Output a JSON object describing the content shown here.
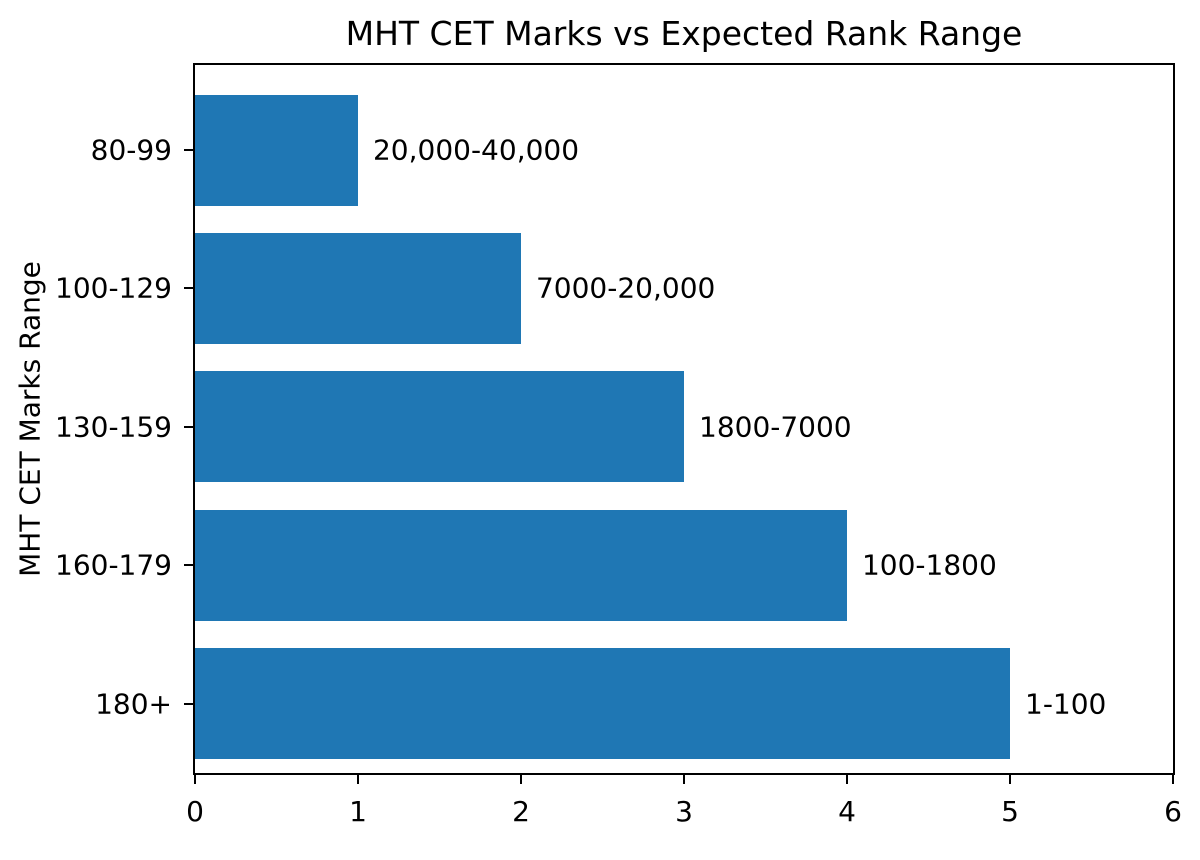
{
  "chart_data": {
    "type": "bar",
    "orientation": "horizontal",
    "title": "MHT CET Marks vs Expected Rank Range",
    "xlabel": "",
    "ylabel": "MHT CET Marks Range",
    "categories": [
      "80-99",
      "100-129",
      "130-159",
      "160-179",
      "180+"
    ],
    "categories_order": "top-to-bottom",
    "values": [
      1,
      2,
      3,
      4,
      5
    ],
    "bar_labels": [
      "20,000-40,000",
      "7000-20,000",
      "1800-7000",
      "100-1800",
      "1-100"
    ],
    "xlim": [
      0,
      6
    ],
    "xticks": [
      0,
      1,
      2,
      3,
      4,
      5,
      6
    ],
    "bar_color": "#1f77b4",
    "text_color": "#000000",
    "grid": false,
    "legend": false
  }
}
